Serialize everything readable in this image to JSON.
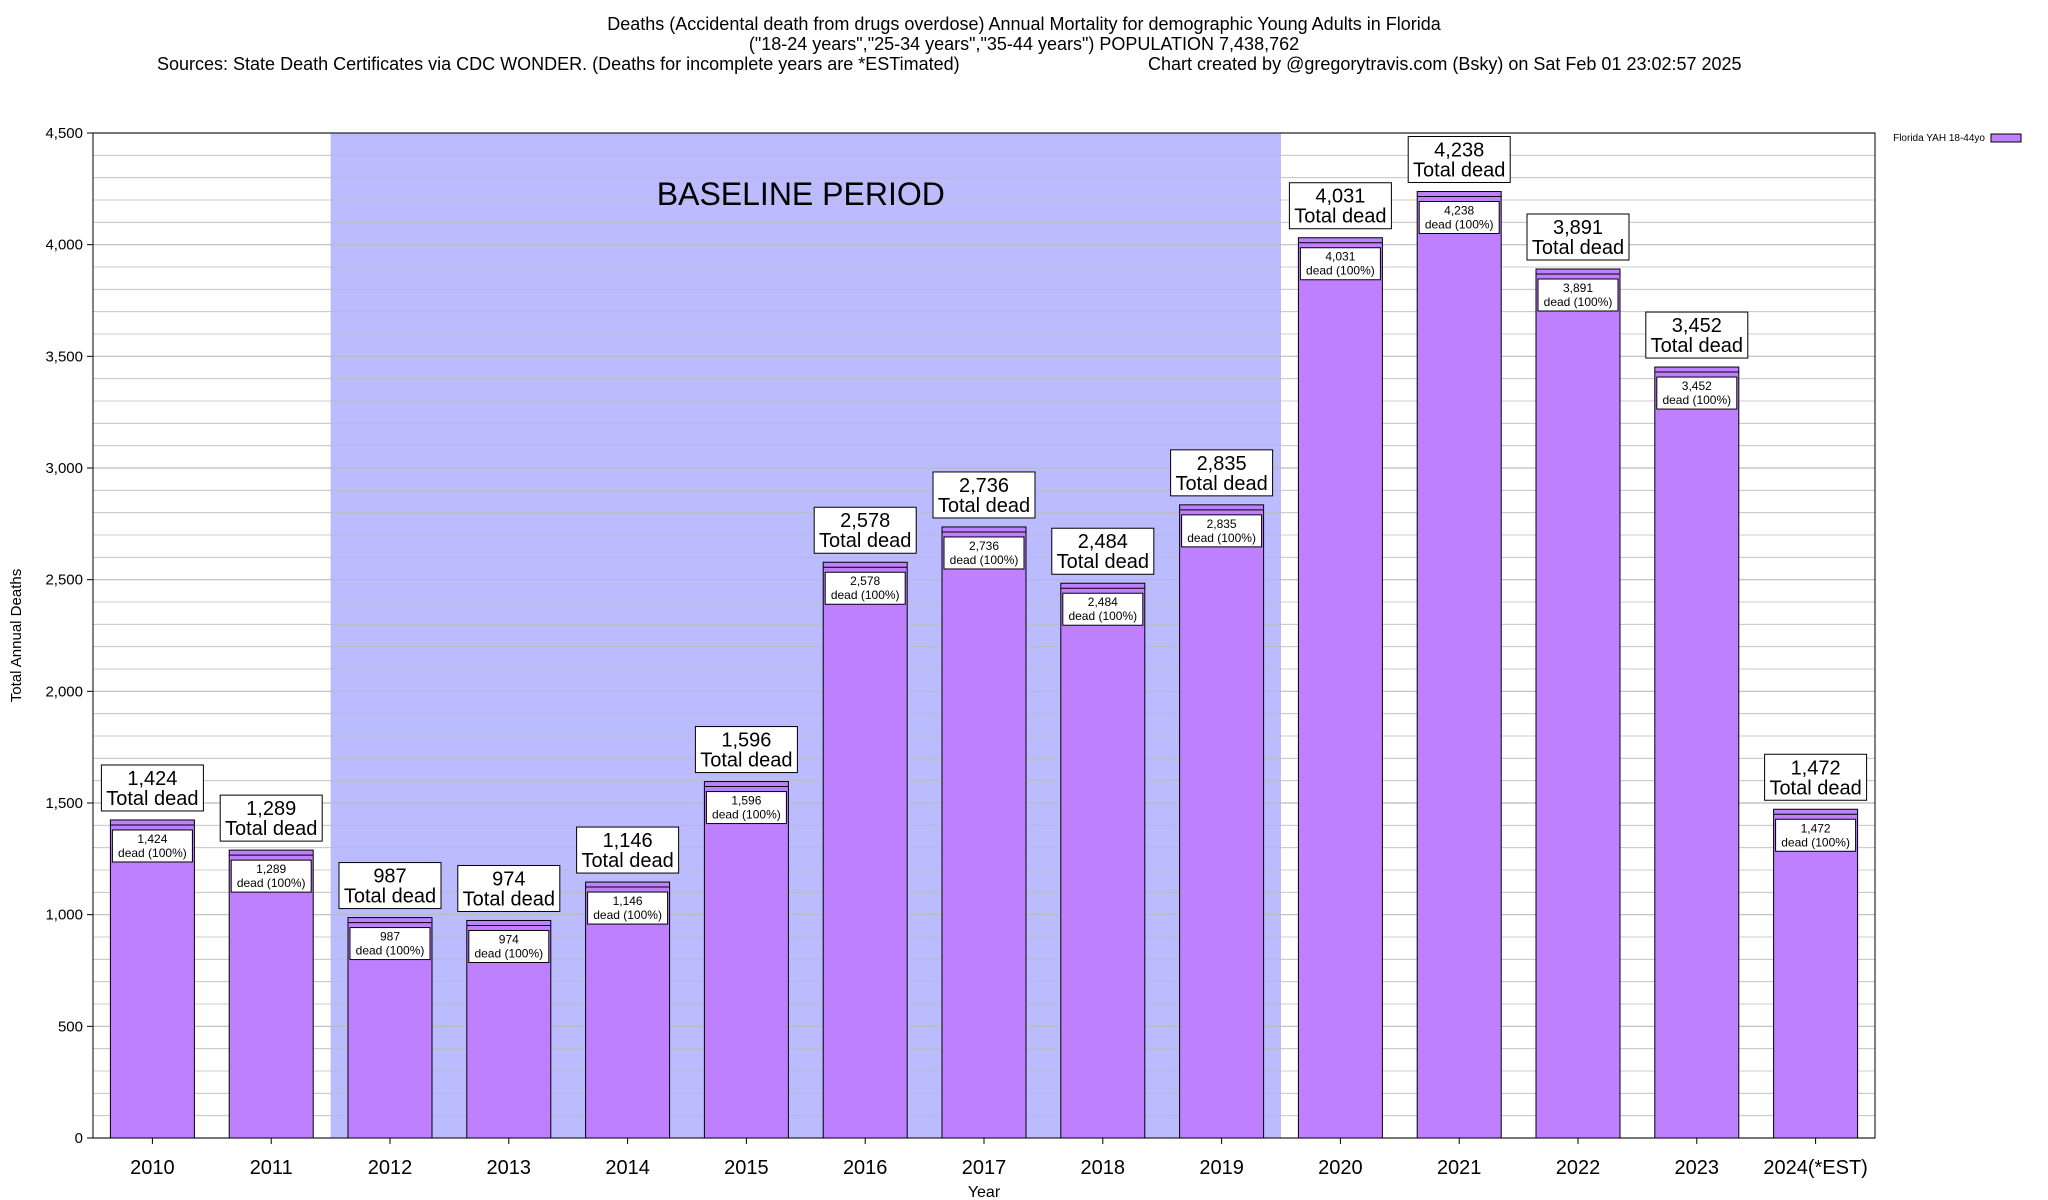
{
  "title": {
    "line1": "Deaths (Accidental death from drugs overdose) Annual Mortality for demographic Young Adults in Florida",
    "line2": "(\"18-24 years\",\"25-34 years\",\"35-44 years\") POPULATION 7,438,762",
    "sources": "Sources: State Death Certificates via CDC WONDER. (Deaths for incomplete years are *ESTimated)",
    "credit": "Chart created by @gregorytravis.com (Bsky) on Sat Feb 01 23:02:57 2025"
  },
  "colors": {
    "bar": "#bf80ff",
    "baseline": "#bbbbff",
    "grid": "#bbbbbb"
  },
  "chart_data": {
    "type": "bar",
    "title": "Deaths (Accidental death from drugs overdose) Annual Mortality for demographic Young Adults in Florida",
    "xlabel": "Year",
    "ylabel": "Total Annual Deaths",
    "ylim": [
      0,
      4500
    ],
    "yticks": [
      0,
      500,
      1000,
      1500,
      2000,
      2500,
      3000,
      3500,
      4000,
      4500
    ],
    "ytick_labels": [
      "0",
      "500",
      "1,000",
      "1,500",
      "2,000",
      "2,500",
      "3,000",
      "3,500",
      "4,000",
      "4,500"
    ],
    "categories": [
      "2010",
      "2011",
      "2012",
      "2013",
      "2014",
      "2015",
      "2016",
      "2017",
      "2018",
      "2019",
      "2020",
      "2021",
      "2022",
      "2023",
      "2024(*EST)"
    ],
    "values": [
      1424,
      1289,
      987,
      974,
      1146,
      1596,
      2578,
      2736,
      2484,
      2835,
      4031,
      4238,
      3891,
      3452,
      1472
    ],
    "value_labels": [
      "1,424",
      "1,289",
      "987",
      "974",
      "1,146",
      "1,596",
      "2,578",
      "2,736",
      "2,484",
      "2,835",
      "4,031",
      "4,238",
      "3,891",
      "3,452",
      "1,472"
    ],
    "top_label_suffix": "Total dead",
    "inner_label_suffix": "dead (100%)",
    "legend": {
      "label": "Florida YAH 18-44yo",
      "position": "top-right"
    },
    "annotation": {
      "text": "BASELINE PERIOD",
      "from_category": "2012",
      "to_category": "2019"
    }
  }
}
